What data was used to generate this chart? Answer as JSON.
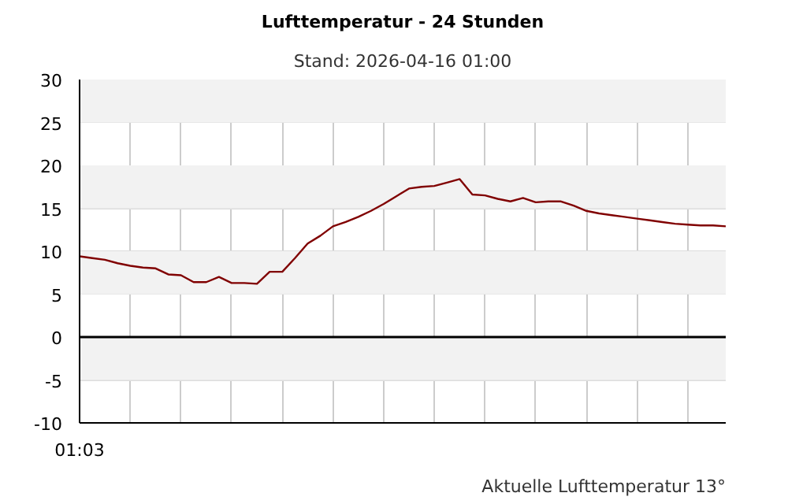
{
  "chart_data": {
    "type": "line",
    "title": "Lufttemperatur - 24 Stunden",
    "subtitle": "Stand: 2026-04-16 01:00",
    "annotations": [
      "Aktuelle Lufttemperatur 13°"
    ],
    "categories": [
      "01:03",
      null,
      null,
      null,
      null,
      null,
      null,
      null,
      null,
      null,
      null,
      null,
      null,
      null,
      null,
      null,
      null,
      null,
      null,
      null,
      null,
      null,
      null,
      null,
      null,
      null,
      null,
      null,
      null,
      null,
      null,
      null,
      null,
      null,
      null,
      null,
      null,
      null,
      null,
      null,
      null,
      null,
      null,
      null,
      null,
      null,
      null,
      null,
      null,
      null,
      null,
      null
    ],
    "series": [
      {
        "color": "#800000",
        "values": [
          9.4,
          9.2,
          9.0,
          8.6,
          8.3,
          8.1,
          8.0,
          7.3,
          7.2,
          6.4,
          6.4,
          7.0,
          6.3,
          6.3,
          6.2,
          7.6,
          7.6,
          9.2,
          10.9,
          11.8,
          12.9,
          13.4,
          14.0,
          14.7,
          15.5,
          16.4,
          17.3,
          17.5,
          17.6,
          18.0,
          18.4,
          16.6,
          16.5,
          16.1,
          15.8,
          16.2,
          15.7,
          15.8,
          15.8,
          15.3,
          14.7,
          14.4,
          14.2,
          14.0,
          13.8,
          13.6,
          13.4,
          13.2,
          13.1,
          13.0,
          13.0,
          12.9
        ]
      }
    ],
    "ylim": [
      -10,
      30
    ],
    "yticks": [
      -10,
      -5,
      0,
      5,
      10,
      15,
      20,
      25,
      30
    ],
    "bands": [
      {
        "axis": "y",
        "from": 25,
        "to": 30,
        "color": "#f2f2f2"
      },
      {
        "axis": "y",
        "from": 15,
        "to": 20,
        "color": "#f2f2f2"
      },
      {
        "axis": "y",
        "from": 5,
        "to": 10,
        "color": "#f2f2f2"
      },
      {
        "axis": "y",
        "from": -5,
        "to": 0,
        "color": "#f2f2f2"
      }
    ],
    "ref_lines": [
      {
        "axis": "y",
        "value": 0,
        "color": "#000000"
      }
    ],
    "grid": true,
    "marker": "none",
    "line_style": "solid"
  }
}
